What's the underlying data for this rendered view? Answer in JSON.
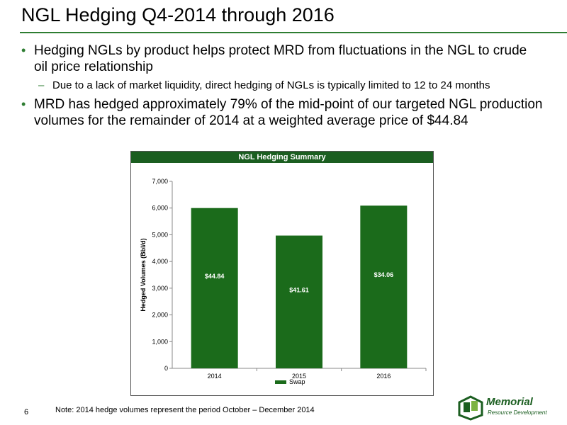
{
  "slide": {
    "title": "NGL Hedging Q4-2014 through 2016",
    "page_number": "6",
    "footnote": "Note: 2014 hedge volumes represent the period October – December 2014"
  },
  "bullets": [
    {
      "text": "Hedging NGLs by product helps protect MRD from fluctuations in the NGL to crude oil price relationship",
      "sub": "Due to a lack of market liquidity, direct hedging of NGLs is typically limited to 12 to 24 months"
    },
    {
      "text": "MRD has hedged approximately 79% of the mid-point of our targeted NGL production volumes for the remainder of 2014 at a weighted average price of $44.84"
    }
  ],
  "logo": {
    "name": "Memorial",
    "sub": "Resource Development",
    "color": "#1b5e20"
  },
  "chart_data": {
    "type": "bar",
    "title": "NGL Hedging Summary",
    "categories": [
      "2014",
      "2015",
      "2016"
    ],
    "series": [
      {
        "name": "Swap",
        "values": [
          6000,
          4970,
          6090
        ],
        "labels": [
          "$44.84",
          "$41.61",
          "$34.06"
        ]
      }
    ],
    "ylabel": "Hedged Volumes (Bbl/d)",
    "xlabel": "",
    "ylim": [
      0,
      7000
    ],
    "yticks": [
      0,
      1000,
      2000,
      3000,
      4000,
      5000,
      6000,
      7000
    ],
    "ytick_labels": [
      "0",
      "1,000",
      "2,000",
      "3,000",
      "4,000",
      "5,000",
      "6,000",
      "7,000"
    ],
    "legend": "bottom",
    "grid": false,
    "bar_color": "#1b6b1b",
    "header_color": "#1b5e20"
  }
}
